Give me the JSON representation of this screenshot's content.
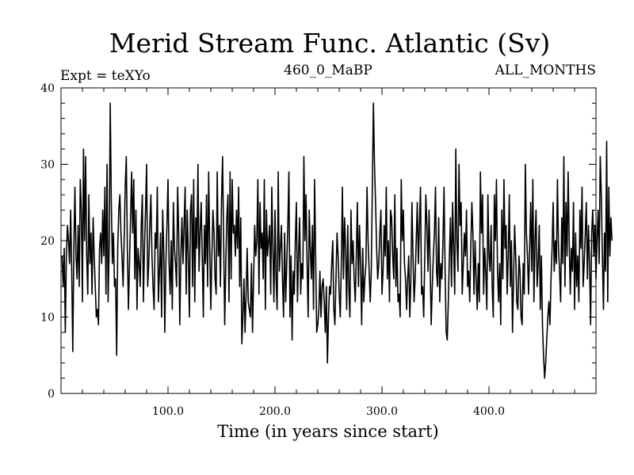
{
  "chart_data": {
    "type": "line",
    "title": "Merid Stream Func. Atlantic (Sv)",
    "subtitles": {
      "left": "Expt = teXYo",
      "center": "460_0_MaBP",
      "right": "ALL_MONTHS"
    },
    "xlabel": "Time (in years since start)",
    "ylabel": "",
    "xlim": [
      0,
      500
    ],
    "ylim": [
      0,
      40
    ],
    "x_ticks": [
      100,
      200,
      300,
      400
    ],
    "x_tick_labels": [
      "100.0",
      "200.0",
      "300.0",
      "400.0"
    ],
    "y_ticks": [
      0,
      10,
      20,
      30,
      40
    ],
    "y_tick_labels": [
      "0",
      "10",
      "20",
      "30",
      "40"
    ],
    "grid": false,
    "line_color": "#000000",
    "series": [
      {
        "x_start": 1,
        "x_step": 1,
        "values": [
          18,
          14,
          19,
          8,
          18,
          22,
          20,
          17,
          24,
          16,
          5.5,
          19,
          27,
          18,
          15,
          22,
          14,
          28,
          24,
          12,
          32,
          20,
          31,
          18,
          13,
          26,
          17,
          21,
          13,
          23,
          18,
          14,
          10,
          11,
          9,
          19,
          21,
          17,
          24,
          18,
          27,
          13,
          30,
          12,
          19,
          38,
          25,
          17,
          21,
          14,
          15,
          5,
          19,
          24,
          26,
          21,
          18,
          14,
          20,
          27,
          31,
          19,
          11,
          17,
          23,
          29,
          21,
          28,
          15,
          24,
          11,
          19,
          17,
          14,
          22,
          26,
          12,
          19,
          24,
          30,
          14,
          17,
          22,
          26,
          18,
          14,
          11,
          21,
          19,
          27,
          12,
          16,
          21,
          10,
          24,
          19,
          8,
          17,
          22,
          28,
          17,
          13,
          20,
          11,
          25,
          19,
          17,
          14,
          27,
          21,
          9,
          18,
          23,
          17,
          22,
          27,
          13,
          24,
          18,
          10,
          24,
          26,
          14,
          28,
          12,
          23,
          19,
          30,
          16,
          21,
          25,
          18,
          10,
          22,
          17,
          26,
          14,
          29,
          19,
          11,
          18,
          24,
          21,
          15,
          13,
          29,
          18,
          22,
          14,
          25,
          31,
          20,
          9,
          17,
          23,
          26,
          12,
          29,
          15,
          28,
          21,
          22,
          18,
          24,
          19,
          27,
          14,
          23,
          6.5,
          10,
          15,
          8,
          13,
          19,
          12,
          11,
          10,
          17,
          8,
          15,
          22,
          18,
          20,
          28,
          13,
          25,
          19,
          21,
          15,
          28,
          11,
          24,
          18,
          20,
          22,
          13,
          27,
          19,
          12,
          24,
          15,
          11,
          29,
          16,
          19,
          22,
          15,
          10,
          21,
          12,
          17,
          22,
          29,
          10,
          18,
          7,
          16,
          13,
          20,
          25,
          12,
          18,
          23,
          13,
          17,
          15,
          31,
          20,
          26,
          17,
          10,
          24,
          19,
          15,
          22,
          11,
          28,
          18,
          8,
          9,
          11,
          16,
          10,
          14,
          15,
          12,
          8,
          14,
          4,
          10,
          14,
          13,
          17,
          20,
          11,
          9,
          15,
          21,
          18,
          13,
          10,
          17,
          27,
          15,
          23,
          19,
          11,
          22,
          14,
          10,
          24,
          17,
          20,
          15,
          12,
          18,
          25,
          14,
          22,
          17,
          9,
          19,
          12,
          15,
          17,
          27,
          20,
          16,
          12,
          16,
          27,
          38,
          30,
          25,
          19,
          15,
          17,
          21,
          24,
          13,
          16,
          22,
          18,
          27,
          15,
          20,
          12,
          24,
          23,
          18,
          15,
          26,
          14,
          19,
          12,
          13,
          10,
          28,
          20,
          24,
          17,
          15,
          11,
          15,
          18,
          10,
          15,
          25,
          18,
          12,
          15,
          20,
          25,
          17,
          22,
          27,
          13,
          14,
          10,
          18,
          26,
          22,
          16,
          24,
          17,
          9,
          14,
          18,
          21,
          27,
          16,
          14,
          23,
          12,
          17,
          15,
          20,
          27,
          16,
          8,
          7,
          12,
          18,
          23,
          14,
          25,
          19,
          13,
          32,
          20,
          16,
          30,
          22,
          25,
          13,
          17,
          21,
          18,
          24,
          14,
          16,
          12,
          19,
          25,
          21,
          13,
          20,
          15,
          11,
          17,
          12,
          29,
          21,
          26,
          13,
          19,
          16,
          11,
          26,
          18,
          16,
          22,
          14,
          10,
          26,
          20,
          28,
          16,
          12,
          17,
          9,
          24,
          15,
          28,
          19,
          22,
          13,
          18,
          26,
          14,
          20,
          8,
          15,
          22,
          18,
          12,
          11,
          18,
          16,
          10,
          9,
          17,
          13,
          30,
          21,
          18,
          13,
          19,
          25,
          16,
          28,
          12,
          20,
          24,
          14,
          17,
          22,
          11,
          18,
          9,
          5,
          2,
          4,
          7,
          10,
          12,
          9,
          15,
          19,
          25,
          16,
          20,
          17,
          28,
          19,
          16,
          12,
          23,
          17,
          31,
          14,
          25,
          18,
          29,
          20,
          13,
          19,
          16,
          25,
          11,
          21,
          14,
          18,
          12,
          24,
          19,
          27,
          14,
          17,
          21,
          25,
          15,
          22,
          17,
          9,
          21,
          24,
          18,
          22,
          15,
          20,
          24,
          17,
          31,
          26,
          18,
          11,
          21,
          16,
          33,
          12,
          27,
          18,
          23,
          20
        ]
      }
    ]
  }
}
